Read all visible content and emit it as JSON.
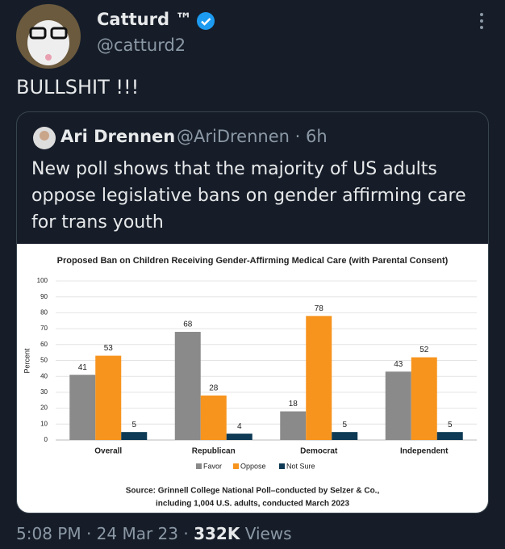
{
  "author": {
    "name": "Catturd ™",
    "handle": "@catturd2"
  },
  "text": "BULLSHIT !!!",
  "quote": {
    "name": "Ari Drennen",
    "handle_time": "@AriDrennen · 6h",
    "lines": [
      "New poll shows that the majority of US adults",
      "oppose legislative bans on gender affirming care",
      "for trans youth"
    ]
  },
  "chart_data": {
    "type": "bar",
    "title": "Proposed Ban on Children Receiving Gender-Affirming Medical Care (with Parental Consent)",
    "y_label": "Percent",
    "categories": [
      "Overall",
      "Republican",
      "Democrat",
      "Independent"
    ],
    "series": [
      {
        "name": "Favor",
        "color": "#8a8a8a",
        "values": [
          41,
          68,
          18,
          43
        ]
      },
      {
        "name": "Oppose",
        "color": "#f7941d",
        "values": [
          53,
          28,
          78,
          52
        ]
      },
      {
        "name": "Not Sure",
        "color": "#0e3a55",
        "values": [
          5,
          4,
          5,
          5
        ]
      }
    ],
    "ylim": [
      0,
      100
    ],
    "yticks": [
      0,
      10,
      20,
      30,
      40,
      50,
      60,
      70,
      80,
      90,
      100
    ],
    "grid": true,
    "source": [
      "Source:  Grinnell College National Poll–conducted by Selzer & Co.,",
      "including 1,004 U.S. adults, conducted March 2023"
    ]
  },
  "footer": {
    "time": "5:08 PM · 24 Mar 23 ·",
    "views": "332K",
    "views_label": "Views"
  }
}
